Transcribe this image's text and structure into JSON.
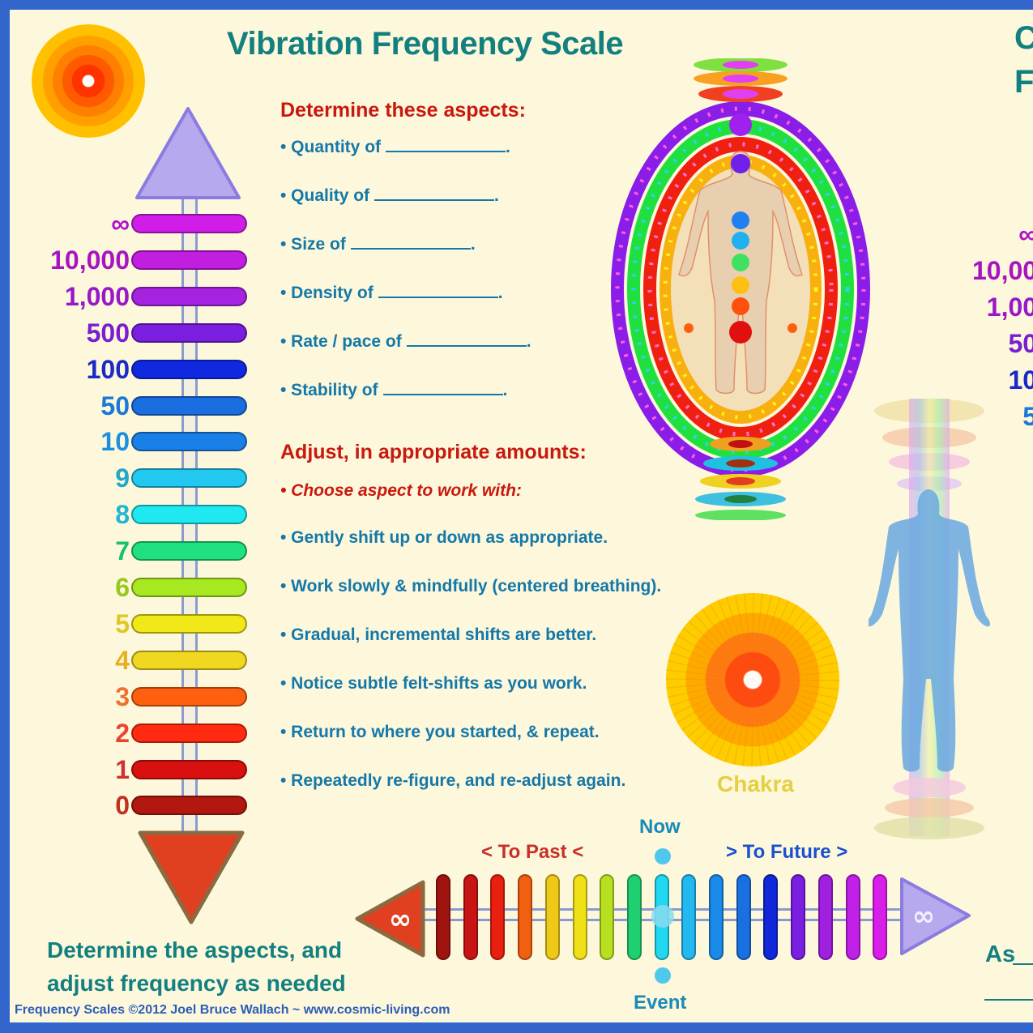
{
  "title": "Vibration Frequency Scale",
  "right_title_partial": [
    "C",
    "F"
  ],
  "colors": {
    "background": "#fdf7dc",
    "border": "#3366cc",
    "title": "#138080",
    "heading_red": "#c8190e",
    "bullet_blue": "#1478a8",
    "footer": "#2a5db8"
  },
  "scale": {
    "top_arrow": "up-arrow-violet",
    "bottom_arrow": "down-arrow-red",
    "levels": [
      {
        "label": "∞",
        "text_color": "#b010c8",
        "bar_color": "#d01ee8"
      },
      {
        "label": "10,000",
        "text_color": "#a814c0",
        "bar_color": "#c21ee0"
      },
      {
        "label": "1,000",
        "text_color": "#9818c8",
        "bar_color": "#a522e0"
      },
      {
        "label": "500",
        "text_color": "#7a1ed0",
        "bar_color": "#7a1ee0"
      },
      {
        "label": "100",
        "text_color": "#1a2ac8",
        "bar_color": "#1028e0"
      },
      {
        "label": "50",
        "text_color": "#1a78d8",
        "bar_color": "#1a6ee0"
      },
      {
        "label": "10",
        "text_color": "#1a90e0",
        "bar_color": "#1a80e8"
      },
      {
        "label": "9",
        "text_color": "#20a8c8",
        "bar_color": "#22c8f0"
      },
      {
        "label": "8",
        "text_color": "#20b8d0",
        "bar_color": "#20e8f0"
      },
      {
        "label": "7",
        "text_color": "#18c070",
        "bar_color": "#20e080"
      },
      {
        "label": "6",
        "text_color": "#98c818",
        "bar_color": "#a8e820"
      },
      {
        "label": "5",
        "text_color": "#e0c820",
        "bar_color": "#f0e818"
      },
      {
        "label": "4",
        "text_color": "#e8b020",
        "bar_color": "#f0d820"
      },
      {
        "label": "3",
        "text_color": "#f07030",
        "bar_color": "#ff6010"
      },
      {
        "label": "2",
        "text_color": "#f04030",
        "bar_color": "#ff2a10"
      },
      {
        "label": "1",
        "text_color": "#d03030",
        "bar_color": "#d81010"
      },
      {
        "label": "0",
        "text_color": "#c03020",
        "bar_color": "#b01810"
      }
    ]
  },
  "determine": {
    "heading": "Determine these aspects:",
    "items": [
      {
        "label": "• Quantity of",
        "suffix": "."
      },
      {
        "label": "• Quality of",
        "suffix": "."
      },
      {
        "label": "• Size of",
        "suffix": "."
      },
      {
        "label": "• Density of",
        "suffix": "."
      },
      {
        "label": "• Rate / pace of",
        "suffix": "."
      },
      {
        "label": "• Stability of",
        "suffix": "."
      }
    ]
  },
  "adjust": {
    "heading": "Adjust, in appropriate amounts:",
    "choose": "• Choose aspect to work with:",
    "items": [
      "• Gently shift up or down as appropriate.",
      "• Work slowly & mindfully (centered breathing).",
      "• Gradual, incremental shifts are better.",
      "• Notice subtle felt-shifts as you work.",
      "• Return to where you started, & repeat.",
      "• Repeatedly re-figure, and re-adjust again."
    ]
  },
  "chakra_label": "Chakra",
  "right_scale_partial": [
    "∞",
    "10,00",
    "1,00",
    "50",
    "10",
    "5"
  ],
  "bottom_note": [
    "Determine the aspects, and",
    "adjust frequency as needed"
  ],
  "footer": "Frequency Scales ©2012 Joel Bruce Wallach ~ www.cosmic-living.com",
  "timeline": {
    "past_label": "<  To Past  <",
    "future_label": ">  To Future  >",
    "now_label": "Now",
    "event_label": "Event",
    "left_symbol": "∞",
    "right_symbol": "∞",
    "bars": [
      "#a01410",
      "#c81414",
      "#e82010",
      "#f06010",
      "#f0c818",
      "#f0e018",
      "#b8e020",
      "#20d070",
      "#22d8f0",
      "#22b8f0",
      "#1a8ae8",
      "#1a70e0",
      "#1028d8",
      "#7a1ee0",
      "#a020e0",
      "#c020e8",
      "#d81ee8"
    ]
  },
  "as_text": "As"
}
